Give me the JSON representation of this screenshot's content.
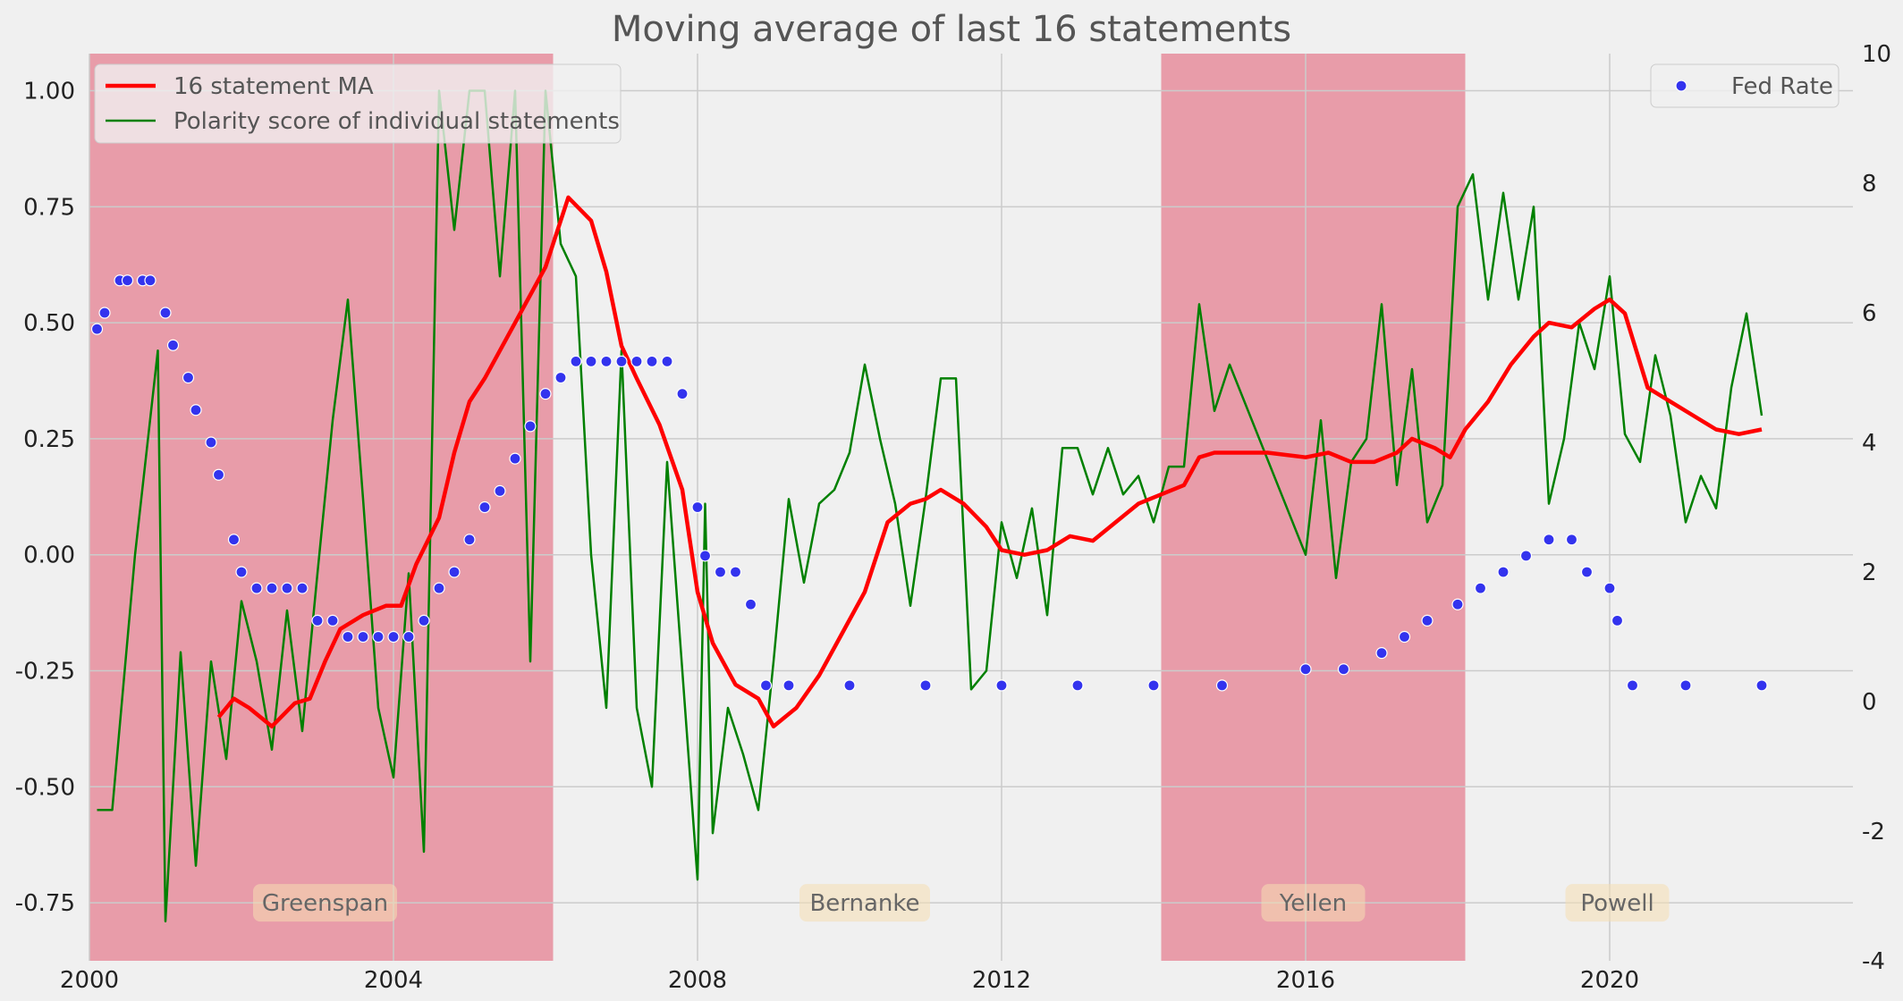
{
  "chart_data": {
    "type": "line",
    "title": "Moving average of last 16 statements",
    "xlabel": "",
    "ylabel": "",
    "xlim": [
      2000.0,
      2023.2
    ],
    "ylim": [
      -0.875,
      1.08
    ],
    "y2lim": [
      -4,
      10
    ],
    "x_ticks": [
      "2000",
      "2004",
      "2008",
      "2012",
      "2016",
      "2020"
    ],
    "y_ticks": [
      "1.00",
      "0.75",
      "0.50",
      "0.25",
      "0.00",
      "-0.25",
      "-0.50",
      "-0.75"
    ],
    "y2_ticks": [
      "10",
      "8",
      "6",
      "4",
      "2",
      "0",
      "-2",
      "-4"
    ],
    "grid": true,
    "legend_left": [
      {
        "name": "16 statement MA",
        "color": "#ff0000"
      },
      {
        "name": "Polarity score of individual statements",
        "color": "#008000"
      }
    ],
    "legend_right": [
      {
        "name": "Fed Rate",
        "color": "#3333ee"
      }
    ],
    "shaded_periods": [
      {
        "start": 2000.0,
        "end": 2006.1,
        "color": "#e2586f"
      },
      {
        "start": 2014.1,
        "end": 2018.1,
        "color": "#e2586f"
      }
    ],
    "eras": [
      {
        "label": "Greenspan",
        "x": 2003.1
      },
      {
        "label": "Bernanke",
        "x": 2010.2
      },
      {
        "label": "Yellen",
        "x": 2016.1
      },
      {
        "label": "Powell",
        "x": 2020.1
      }
    ],
    "series": [
      {
        "name": "16 statement MA",
        "color": "#ff0000",
        "axis": "left",
        "x": [
          2001.7,
          2001.9,
          2002.1,
          2002.4,
          2002.7,
          2002.9,
          2003.1,
          2003.3,
          2003.6,
          2003.9,
          2004.1,
          2004.3,
          2004.6,
          2004.8,
          2005.0,
          2005.2,
          2005.5,
          2005.8,
          2006.0,
          2006.3,
          2006.6,
          2006.8,
          2007.0,
          2007.2,
          2007.5,
          2007.8,
          2008.0,
          2008.2,
          2008.5,
          2008.8,
          2009.0,
          2009.3,
          2009.6,
          2009.9,
          2010.2,
          2010.5,
          2010.8,
          2011.0,
          2011.2,
          2011.5,
          2011.8,
          2012.0,
          2012.3,
          2012.6,
          2012.9,
          2013.2,
          2013.5,
          2013.8,
          2014.1,
          2014.4,
          2014.6,
          2014.8,
          2015.0,
          2015.5,
          2016.0,
          2016.3,
          2016.6,
          2016.9,
          2017.2,
          2017.4,
          2017.7,
          2017.9,
          2018.1,
          2018.4,
          2018.7,
          2019.0,
          2019.2,
          2019.5,
          2019.8,
          2020.0,
          2020.2,
          2020.5,
          2020.8,
          2021.1,
          2021.4,
          2021.7,
          2022.0
        ],
        "values": [
          -0.35,
          -0.31,
          -0.33,
          -0.37,
          -0.32,
          -0.31,
          -0.23,
          -0.16,
          -0.13,
          -0.11,
          -0.11,
          -0.02,
          0.08,
          0.22,
          0.33,
          0.38,
          0.47,
          0.56,
          0.62,
          0.77,
          0.72,
          0.61,
          0.45,
          0.38,
          0.28,
          0.14,
          -0.08,
          -0.19,
          -0.28,
          -0.31,
          -0.37,
          -0.33,
          -0.26,
          -0.17,
          -0.08,
          0.07,
          0.11,
          0.12,
          0.14,
          0.11,
          0.06,
          0.01,
          0.0,
          0.01,
          0.04,
          0.03,
          0.07,
          0.11,
          0.13,
          0.15,
          0.21,
          0.22,
          0.22,
          0.22,
          0.21,
          0.22,
          0.2,
          0.2,
          0.22,
          0.25,
          0.23,
          0.21,
          0.27,
          0.33,
          0.41,
          0.47,
          0.5,
          0.49,
          0.53,
          0.55,
          0.52,
          0.36,
          0.33,
          0.3,
          0.27,
          0.26,
          0.27
        ]
      },
      {
        "name": "Polarity score of individual statements",
        "color": "#008000",
        "axis": "left",
        "x": [
          2000.1,
          2000.3,
          2000.6,
          2000.9,
          2001.0,
          2001.2,
          2001.4,
          2001.6,
          2001.8,
          2002.0,
          2002.2,
          2002.4,
          2002.6,
          2002.8,
          2003.0,
          2003.2,
          2003.4,
          2003.6,
          2003.8,
          2004.0,
          2004.2,
          2004.4,
          2004.6,
          2004.8,
          2005.0,
          2005.2,
          2005.4,
          2005.6,
          2005.8,
          2006.0,
          2006.2,
          2006.4,
          2006.6,
          2006.8,
          2007.0,
          2007.2,
          2007.4,
          2007.6,
          2007.8,
          2008.0,
          2008.1,
          2008.2,
          2008.4,
          2008.6,
          2008.8,
          2009.0,
          2009.2,
          2009.4,
          2009.6,
          2009.8,
          2010.0,
          2010.2,
          2010.4,
          2010.6,
          2010.8,
          2011.0,
          2011.2,
          2011.4,
          2011.6,
          2011.8,
          2012.0,
          2012.2,
          2012.4,
          2012.6,
          2012.8,
          2013.0,
          2013.2,
          2013.4,
          2013.6,
          2013.8,
          2014.0,
          2014.2,
          2014.4,
          2014.6,
          2014.8,
          2015.0,
          2016.0,
          2016.2,
          2016.4,
          2016.6,
          2016.8,
          2017.0,
          2017.2,
          2017.4,
          2017.6,
          2017.8,
          2018.0,
          2018.2,
          2018.4,
          2018.6,
          2018.8,
          2019.0,
          2019.2,
          2019.4,
          2019.6,
          2019.8,
          2020.0,
          2020.2,
          2020.4,
          2020.6,
          2020.8,
          2021.0,
          2021.2,
          2021.4,
          2021.6,
          2021.8,
          2022.0
        ],
        "values": [
          -0.55,
          -0.55,
          0.0,
          0.44,
          -0.79,
          -0.21,
          -0.67,
          -0.23,
          -0.44,
          -0.1,
          -0.23,
          -0.42,
          -0.12,
          -0.38,
          -0.04,
          0.29,
          0.55,
          0.12,
          -0.33,
          -0.48,
          -0.04,
          -0.64,
          1.0,
          0.7,
          1.0,
          1.0,
          0.6,
          1.0,
          -0.23,
          1.0,
          0.67,
          0.6,
          0.0,
          -0.33,
          0.44,
          -0.33,
          -0.5,
          0.2,
          -0.25,
          -0.7,
          0.11,
          -0.6,
          -0.33,
          -0.43,
          -0.55,
          -0.23,
          0.12,
          -0.06,
          0.11,
          0.14,
          0.22,
          0.41,
          0.25,
          0.11,
          -0.11,
          0.12,
          0.38,
          0.38,
          -0.29,
          -0.25,
          0.07,
          -0.05,
          0.1,
          -0.13,
          0.23,
          0.23,
          0.13,
          0.23,
          0.13,
          0.17,
          0.07,
          0.19,
          0.19,
          0.54,
          0.31,
          0.41,
          0.0,
          0.29,
          -0.05,
          0.2,
          0.25,
          0.54,
          0.15,
          0.4,
          0.07,
          0.15,
          0.75,
          0.82,
          0.55,
          0.78,
          0.55,
          0.75,
          0.11,
          0.25,
          0.5,
          0.4,
          0.6,
          0.26,
          0.2,
          0.43,
          0.3,
          0.07,
          0.17,
          0.1,
          0.36,
          0.52,
          0.3
        ]
      },
      {
        "name": "Fed Rate",
        "color": "#3333ee",
        "axis": "right",
        "x": [
          2000.1,
          2000.2,
          2000.4,
          2000.5,
          2000.7,
          2000.8,
          2001.0,
          2001.1,
          2001.3,
          2001.4,
          2001.6,
          2001.7,
          2001.9,
          2002.0,
          2002.2,
          2002.4,
          2002.6,
          2002.8,
          2003.0,
          2003.2,
          2003.4,
          2003.6,
          2003.8,
          2004.0,
          2004.2,
          2004.4,
          2004.6,
          2004.8,
          2005.0,
          2005.2,
          2005.4,
          2005.6,
          2005.8,
          2006.0,
          2006.2,
          2006.4,
          2006.6,
          2006.8,
          2007.0,
          2007.2,
          2007.4,
          2007.6,
          2007.8,
          2008.0,
          2008.1,
          2008.3,
          2008.5,
          2008.7,
          2008.9,
          2009.2,
          2010.0,
          2011.0,
          2012.0,
          2013.0,
          2014.0,
          2014.9,
          2016.0,
          2016.5,
          2017.0,
          2017.3,
          2017.6,
          2018.0,
          2018.3,
          2018.6,
          2018.9,
          2019.2,
          2019.5,
          2019.7,
          2020.0,
          2020.1,
          2020.3,
          2021.0,
          2022.0
        ],
        "values": [
          5.75,
          6.0,
          6.5,
          6.5,
          6.5,
          6.5,
          6.0,
          5.5,
          5.0,
          4.5,
          4.0,
          3.5,
          2.5,
          2.0,
          1.75,
          1.75,
          1.75,
          1.75,
          1.25,
          1.25,
          1.0,
          1.0,
          1.0,
          1.0,
          1.0,
          1.25,
          1.75,
          2.0,
          2.5,
          3.0,
          3.25,
          3.75,
          4.25,
          4.75,
          5.0,
          5.25,
          5.25,
          5.25,
          5.25,
          5.25,
          5.25,
          5.25,
          4.75,
          3.0,
          2.25,
          2.0,
          2.0,
          1.5,
          0.25,
          0.25,
          0.25,
          0.25,
          0.25,
          0.25,
          0.25,
          0.25,
          0.5,
          0.5,
          0.75,
          1.0,
          1.25,
          1.5,
          1.75,
          2.0,
          2.25,
          2.5,
          2.5,
          2.0,
          1.75,
          1.25,
          0.25,
          0.25,
          0.25
        ]
      }
    ]
  }
}
